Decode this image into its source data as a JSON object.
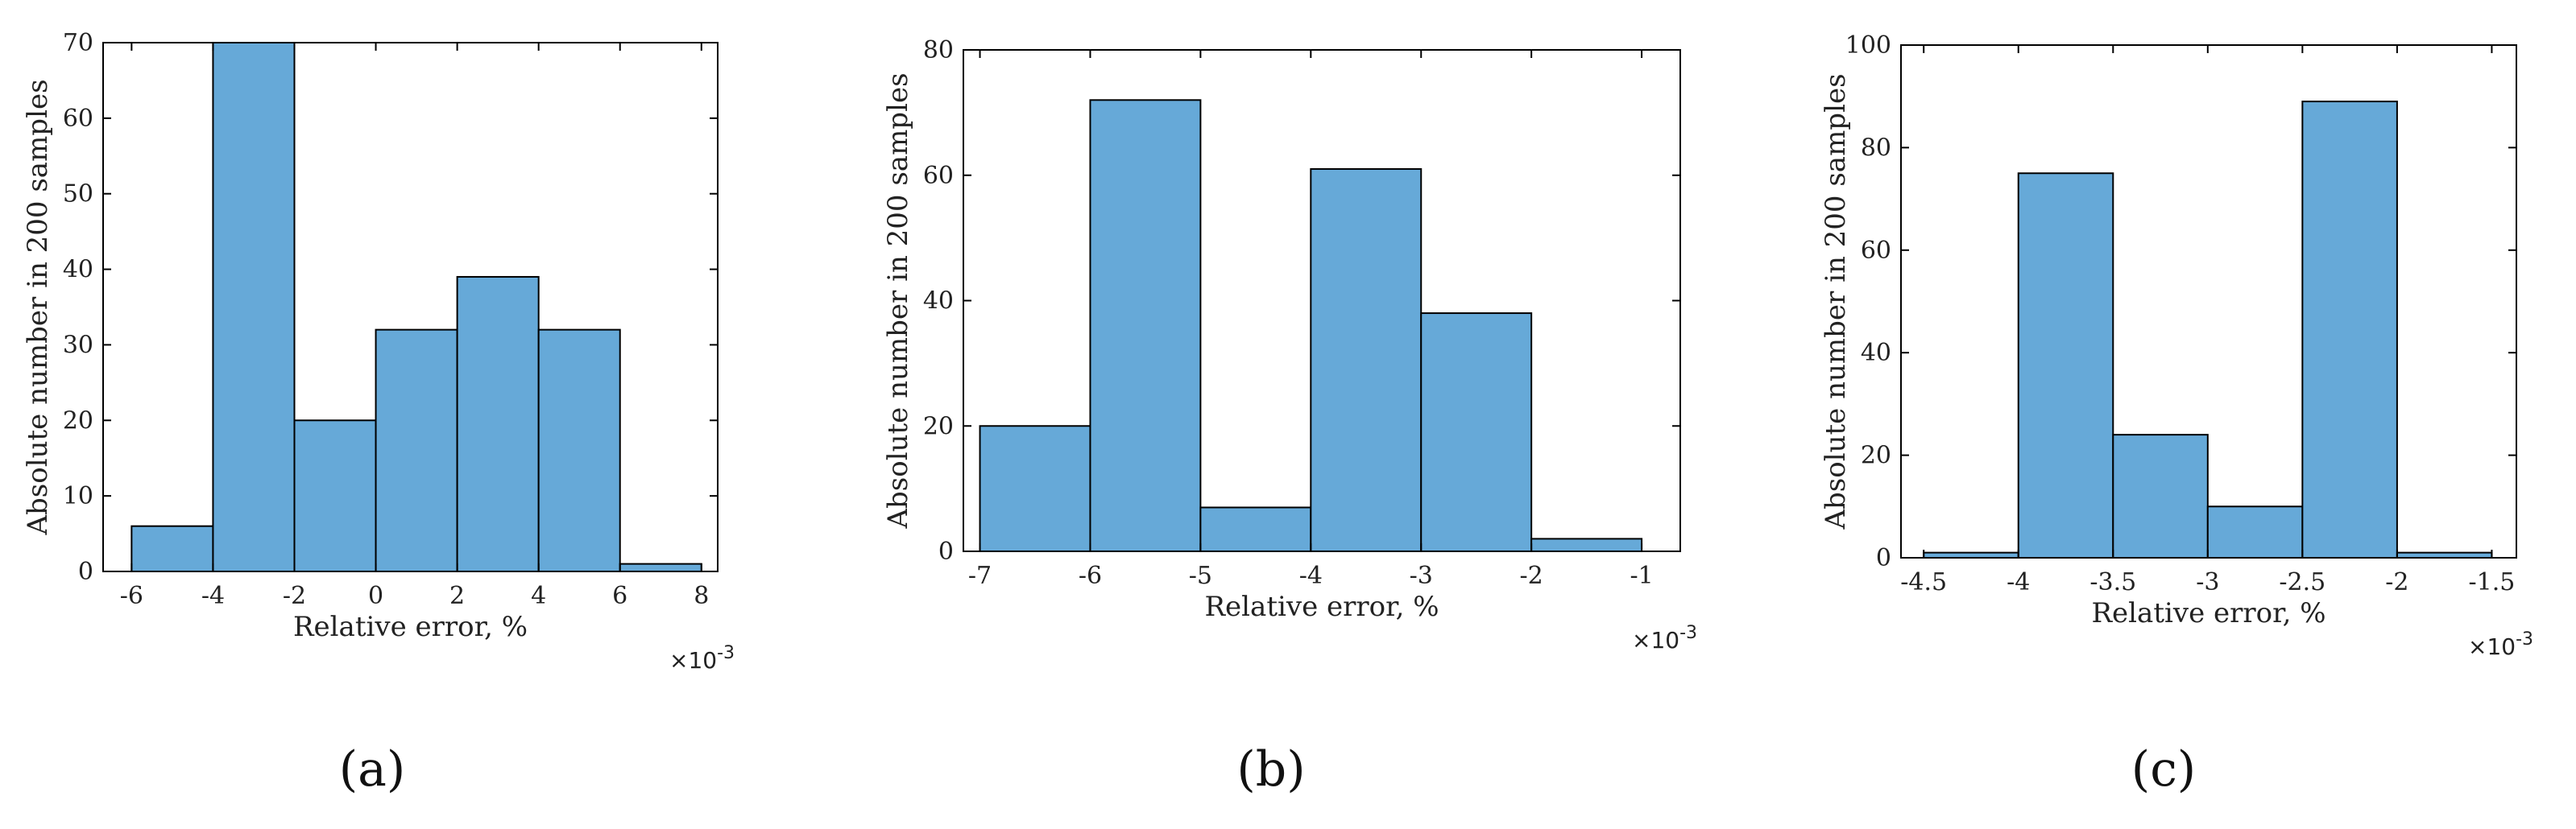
{
  "bar_color": "#66A9D8",
  "edge_color": "#000000",
  "chart_data": [
    {
      "type": "bar",
      "panel": "(a)",
      "xlabel": "Relative error, %",
      "ylabel": "Absolute number in 200 samples",
      "x_exponent": "×10-3",
      "xlim": [
        -6.7,
        8.4
      ],
      "ylim": [
        0,
        70
      ],
      "xticks": [
        -6,
        -4,
        -2,
        0,
        2,
        4,
        6,
        8
      ],
      "xtick_labels": [
        "-6",
        "-4",
        "-2",
        "0",
        "2",
        "4",
        "6",
        "8"
      ],
      "yticks": [
        0,
        10,
        20,
        30,
        40,
        50,
        60,
        70
      ],
      "ytick_labels": [
        "0",
        "10",
        "20",
        "30",
        "40",
        "50",
        "60",
        "70"
      ],
      "bin_edges": [
        -6,
        -4,
        -2,
        0,
        2,
        4,
        6,
        8
      ],
      "values": [
        6,
        70,
        20,
        32,
        39,
        32,
        1
      ]
    },
    {
      "type": "bar",
      "panel": "(b)",
      "xlabel": "Relative error, %",
      "ylabel": "Absolute number in 200 samples",
      "x_exponent": "×10-3",
      "xlim": [
        -7.15,
        -0.65
      ],
      "ylim": [
        0,
        80
      ],
      "xticks": [
        -7,
        -6,
        -5,
        -4,
        -3,
        -2,
        -1
      ],
      "xtick_labels": [
        "-7",
        "-6",
        "-5",
        "-4",
        "-3",
        "-2",
        "-1"
      ],
      "yticks": [
        0,
        20,
        40,
        60,
        80
      ],
      "ytick_labels": [
        "0",
        "20",
        "40",
        "60",
        "80"
      ],
      "bin_edges": [
        -7,
        -6,
        -5,
        -4,
        -3,
        -2,
        -1
      ],
      "values": [
        20,
        72,
        7,
        61,
        38,
        2
      ]
    },
    {
      "type": "bar",
      "panel": "(c)",
      "xlabel": "Relative error, %",
      "ylabel": "Absolute number in 200 samples",
      "x_exponent": "×10-3",
      "xlim": [
        -4.62,
        -1.37
      ],
      "ylim": [
        0,
        100
      ],
      "xticks": [
        -4.5,
        -4,
        -3.5,
        -3,
        -2.5,
        -2,
        -1.5
      ],
      "xtick_labels": [
        "-4.5",
        "-4",
        "-3.5",
        "-3",
        "-2.5",
        "-2",
        "-1.5"
      ],
      "yticks": [
        0,
        20,
        40,
        60,
        80,
        100
      ],
      "ytick_labels": [
        "0",
        "20",
        "40",
        "60",
        "80",
        "100"
      ],
      "bin_edges": [
        -4.5,
        -4,
        -3.5,
        -3,
        -2.5,
        -2,
        -1.5
      ],
      "values": [
        1,
        75,
        24,
        10,
        89,
        1
      ]
    }
  ]
}
